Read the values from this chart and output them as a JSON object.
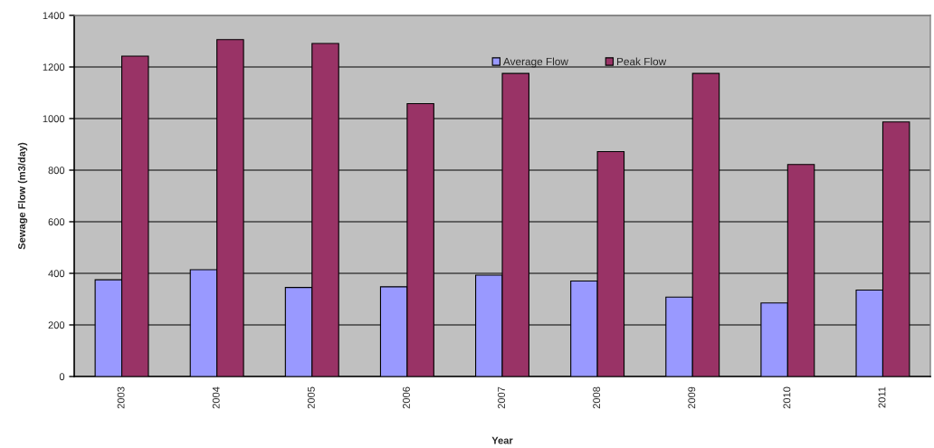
{
  "chart_data": {
    "type": "bar",
    "xlabel": "Year",
    "ylabel": "Sewage Flow (m3/day)",
    "categories": [
      "2003",
      "2004",
      "2005",
      "2006",
      "2007",
      "2008",
      "2009",
      "2010",
      "2011"
    ],
    "series": [
      {
        "name": "Average Flow",
        "color": "#9999ff",
        "values": [
          375,
          414,
          345,
          348,
          393,
          370,
          308,
          285,
          335
        ]
      },
      {
        "name": "Peak Flow",
        "color": "#993366",
        "values": [
          1242,
          1306,
          1291,
          1058,
          1175,
          872,
          1175,
          822,
          987
        ]
      }
    ],
    "ylim": [
      0,
      1400
    ],
    "yticks": [
      0,
      200,
      400,
      600,
      800,
      1000,
      1200,
      1400
    ],
    "grid": "y",
    "legend": "top"
  }
}
